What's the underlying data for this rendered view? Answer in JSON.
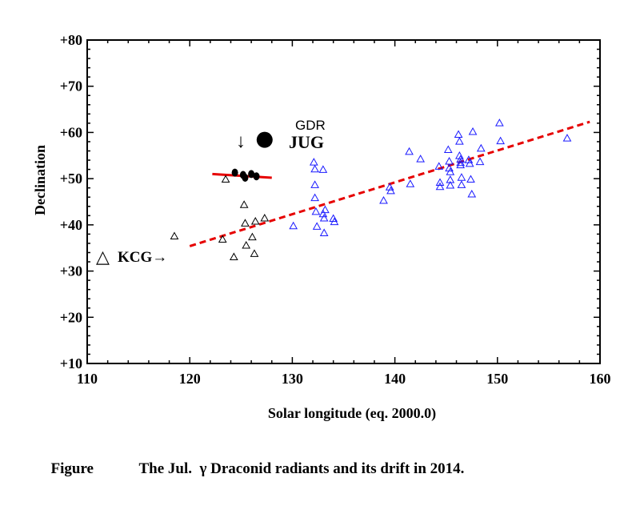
{
  "chart_data": {
    "type": "scatter",
    "xlabel": "Solar longitude (eq. 2000.0)",
    "ylabel": "Declination",
    "xlim": [
      110,
      160
    ],
    "ylim": [
      10,
      80
    ],
    "x_ticks": [
      "110",
      "120",
      "130",
      "140",
      "150",
      "160"
    ],
    "y_ticks": [
      "+10",
      "+20",
      "+30",
      "+40",
      "+50",
      "+60",
      "+70",
      "+80"
    ],
    "series": [
      {
        "name": "black triangles",
        "marker": "triangle-open",
        "color": "#000000",
        "points": [
          [
            118.5,
            37.5
          ],
          [
            123.2,
            36.8
          ],
          [
            123.5,
            49.8
          ],
          [
            124.3,
            33.0
          ],
          [
            125.3,
            44.3
          ],
          [
            125.4,
            40.3
          ],
          [
            125.5,
            35.5
          ],
          [
            126.1,
            37.3
          ],
          [
            126.3,
            33.7
          ],
          [
            126.4,
            40.7
          ],
          [
            127.3,
            41.4
          ]
        ]
      },
      {
        "name": "blue triangles",
        "marker": "triangle-open",
        "color": "#1a1aff",
        "points": [
          [
            130.1,
            39.7
          ],
          [
            132.1,
            53.5
          ],
          [
            132.2,
            52.0
          ],
          [
            132.2,
            48.6
          ],
          [
            132.2,
            45.8
          ],
          [
            132.3,
            42.8
          ],
          [
            132.4,
            39.6
          ],
          [
            133.0,
            51.9
          ],
          [
            133.0,
            42.3
          ],
          [
            133.1,
            41.4
          ],
          [
            133.2,
            43.2
          ],
          [
            133.1,
            38.2
          ],
          [
            134.0,
            41.3
          ],
          [
            134.1,
            40.6
          ],
          [
            138.9,
            45.2
          ],
          [
            139.5,
            48.1
          ],
          [
            139.6,
            47.3
          ],
          [
            141.4,
            55.8
          ],
          [
            141.5,
            48.8
          ],
          [
            142.5,
            54.2
          ],
          [
            144.3,
            52.6
          ],
          [
            144.4,
            49.1
          ],
          [
            144.4,
            48.2
          ],
          [
            145.2,
            56.2
          ],
          [
            145.3,
            53.7
          ],
          [
            145.3,
            52.2
          ],
          [
            145.4,
            51.4
          ],
          [
            145.4,
            49.7
          ],
          [
            145.4,
            48.5
          ],
          [
            146.2,
            59.5
          ],
          [
            146.3,
            58.0
          ],
          [
            146.3,
            54.9
          ],
          [
            146.4,
            54.1
          ],
          [
            146.4,
            53.4
          ],
          [
            146.4,
            52.9
          ],
          [
            146.5,
            50.2
          ],
          [
            146.5,
            48.6
          ],
          [
            147.2,
            54.0
          ],
          [
            147.3,
            53.2
          ],
          [
            147.4,
            49.8
          ],
          [
            147.5,
            46.6
          ],
          [
            147.6,
            60.1
          ],
          [
            148.4,
            56.5
          ],
          [
            148.3,
            53.6
          ],
          [
            150.2,
            62.0
          ],
          [
            150.3,
            58.1
          ],
          [
            156.8,
            58.7
          ]
        ]
      },
      {
        "name": "GDR",
        "marker": "filled-circle",
        "color": "#000000",
        "points": [
          [
            127.3,
            58.4
          ]
        ]
      },
      {
        "name": "drift segment",
        "marker": "filled-dots",
        "color": "#000000",
        "points": [
          [
            124.4,
            51.3
          ],
          [
            125.2,
            50.8
          ],
          [
            125.4,
            50.2
          ],
          [
            126.0,
            51.0
          ],
          [
            126.5,
            50.5
          ]
        ]
      }
    ],
    "lines": [
      {
        "name": "drift fit 2014",
        "style": "dashed",
        "color": "#e60000",
        "x": [
          120.0,
          159.0
        ],
        "y": [
          35.4,
          62.3
        ]
      },
      {
        "name": "GDR drift",
        "style": "solid",
        "color": "#e60000",
        "x": [
          122.2,
          128.0
        ],
        "y": [
          51.0,
          50.2
        ]
      }
    ],
    "annotations": {
      "gdr_label": "GDR",
      "jug_label": "JUG",
      "down_arrow": "↓",
      "kcg_marker": "△",
      "kcg_label": "KCG→"
    }
  },
  "caption": {
    "prefix": "Figure",
    "text": "The Jul.  γ Draconid radiants and its drift in 2014."
  }
}
